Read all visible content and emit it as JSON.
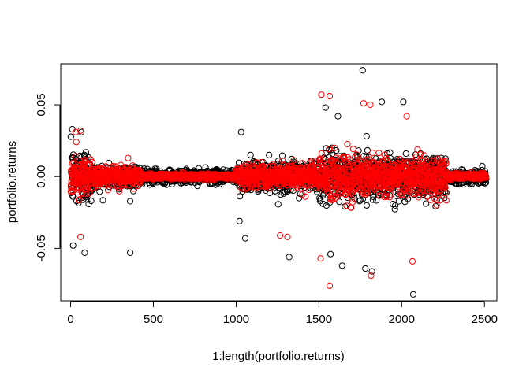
{
  "chart_data": {
    "type": "scatter",
    "xlabel": "1:length(portfolio.returns)",
    "ylabel": "portfolio.returns",
    "xlim": [
      -60,
      2575
    ],
    "ylim": [
      -0.0865,
      0.0785
    ],
    "x_ticks": [
      0,
      500,
      1000,
      1500,
      2000,
      2500
    ],
    "x_tick_labels": [
      "0",
      "500",
      "1000",
      "1500",
      "2000",
      "2500"
    ],
    "y_ticks": [
      -0.05,
      0.0,
      0.05
    ],
    "y_tick_labels": [
      "-0.05",
      "0.00",
      "0.05"
    ],
    "grid": false,
    "series": [
      {
        "color": "#000000",
        "marker": "open-circle",
        "n_points": 2510,
        "volatility_regimes": [
          {
            "x_range": [
              0,
              130
            ],
            "spread": 0.022
          },
          {
            "x_range": [
              130,
              420
            ],
            "spread": 0.009
          },
          {
            "x_range": [
              420,
              1000
            ],
            "spread": 0.005
          },
          {
            "x_range": [
              1000,
              1260
            ],
            "spread": 0.011
          },
          {
            "x_range": [
              1260,
              1500
            ],
            "spread": 0.011
          },
          {
            "x_range": [
              1500,
              1800
            ],
            "spread": 0.018
          },
          {
            "x_range": [
              1800,
              2000
            ],
            "spread": 0.016
          },
          {
            "x_range": [
              2000,
              2270
            ],
            "spread": 0.017
          },
          {
            "x_range": [
              2270,
              2510
            ],
            "spread": 0.005
          }
        ],
        "extreme_points": [
          {
            "x": 1764,
            "y": 0.074
          },
          {
            "x": 2010,
            "y": 0.052
          },
          {
            "x": 1880,
            "y": 0.052
          },
          {
            "x": 1540,
            "y": 0.048
          },
          {
            "x": 1615,
            "y": 0.042
          },
          {
            "x": 2070,
            "y": -0.082
          },
          {
            "x": 1820,
            "y": -0.066
          },
          {
            "x": 1780,
            "y": -0.064
          },
          {
            "x": 1640,
            "y": -0.062
          },
          {
            "x": 1570,
            "y": -0.054
          },
          {
            "x": 1320,
            "y": -0.056
          },
          {
            "x": 360,
            "y": -0.053
          },
          {
            "x": 85,
            "y": -0.053
          },
          {
            "x": 1055,
            "y": -0.043
          },
          {
            "x": 1020,
            "y": -0.031
          },
          {
            "x": 15,
            "y": -0.048
          },
          {
            "x": 10,
            "y": 0.033
          },
          {
            "x": 65,
            "y": 0.031
          },
          {
            "x": 1030,
            "y": 0.031
          }
        ]
      },
      {
        "color": "#ff0000",
        "marker": "open-circle",
        "n_points": 2510,
        "volatility_regimes": [
          {
            "x_range": [
              0,
              130
            ],
            "spread": 0.015
          },
          {
            "x_range": [
              130,
              420
            ],
            "spread": 0.007
          },
          {
            "x_range": [
              420,
              1000
            ],
            "spread": 0.002
          },
          {
            "x_range": [
              1000,
              1260
            ],
            "spread": 0.009
          },
          {
            "x_range": [
              1260,
              1500
            ],
            "spread": 0.01
          },
          {
            "x_range": [
              1500,
              1800
            ],
            "spread": 0.016
          },
          {
            "x_range": [
              1800,
              2000
            ],
            "spread": 0.013
          },
          {
            "x_range": [
              2000,
              2270
            ],
            "spread": 0.014
          },
          {
            "x_range": [
              2270,
              2510
            ],
            "spread": 0.002
          }
        ],
        "extreme_points": [
          {
            "x": 1515,
            "y": 0.057
          },
          {
            "x": 1565,
            "y": 0.056
          },
          {
            "x": 1770,
            "y": 0.051
          },
          {
            "x": 1810,
            "y": 0.05
          },
          {
            "x": 2030,
            "y": 0.042
          },
          {
            "x": 1565,
            "y": -0.076
          },
          {
            "x": 1815,
            "y": -0.069
          },
          {
            "x": 2065,
            "y": -0.059
          },
          {
            "x": 1510,
            "y": -0.057
          },
          {
            "x": 1265,
            "y": -0.041
          },
          {
            "x": 1310,
            "y": -0.042
          },
          {
            "x": 60,
            "y": -0.042
          },
          {
            "x": 30,
            "y": 0.031
          },
          {
            "x": 60,
            "y": 0.032
          }
        ]
      }
    ]
  }
}
